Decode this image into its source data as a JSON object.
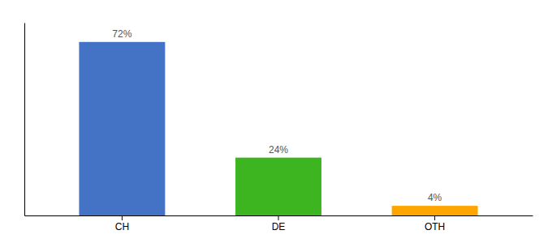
{
  "chart_data": {
    "type": "bar",
    "categories": [
      "CH",
      "DE",
      "OTH"
    ],
    "values": [
      72,
      24,
      4
    ],
    "value_labels": [
      "72%",
      "24%",
      "4%"
    ],
    "colors": [
      "#4472C4",
      "#3CB521",
      "#FFA500"
    ],
    "ylim": [
      0,
      80
    ],
    "data_labels": true,
    "tick_labels": "x",
    "grid": false
  }
}
